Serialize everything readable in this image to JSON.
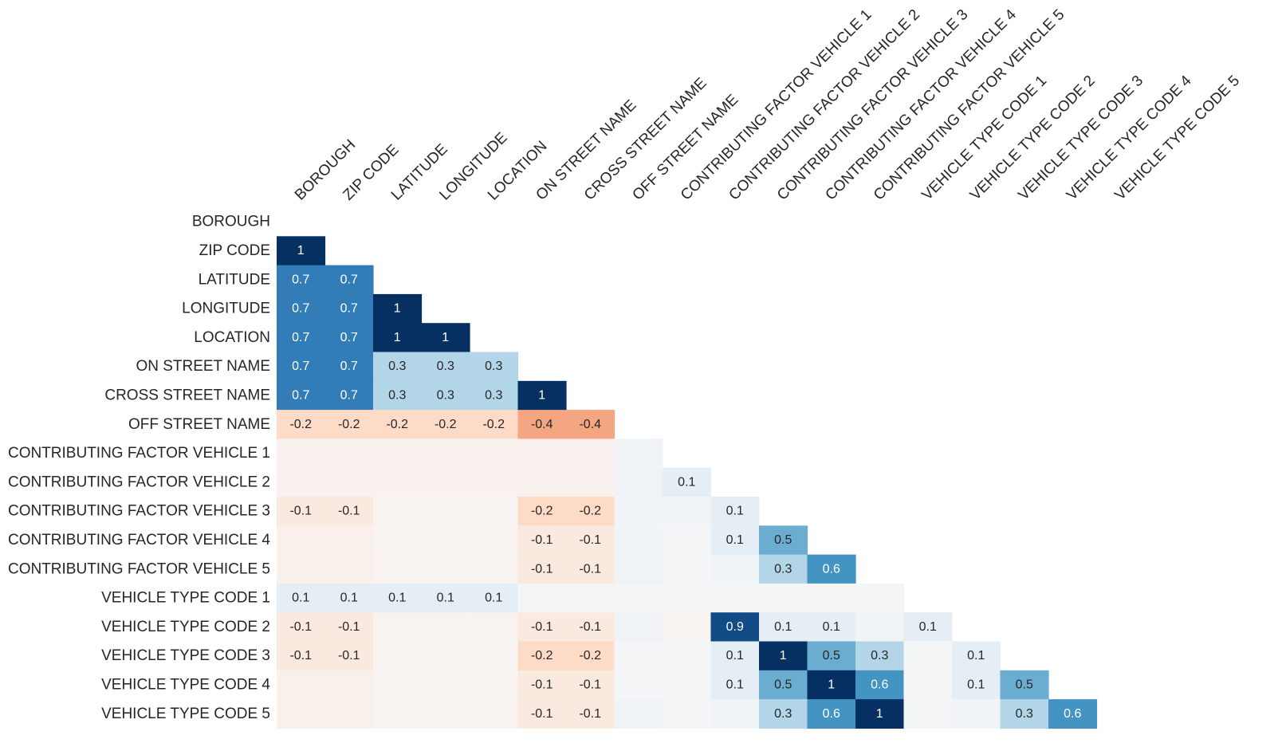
{
  "chart_data": {
    "type": "heatmap",
    "title": "",
    "xlabel": "",
    "ylabel": "",
    "color_scale": {
      "min": -1,
      "max": 1,
      "negative": "#67001f",
      "positive": "#053061",
      "center": "#f7f7f7"
    },
    "labels": [
      "BOROUGH",
      "ZIP CODE",
      "LATITUDE",
      "LONGITUDE",
      "LOCATION",
      "ON STREET NAME",
      "CROSS STREET NAME",
      "OFF STREET NAME",
      "CONTRIBUTING FACTOR VEHICLE 1",
      "CONTRIBUTING FACTOR VEHICLE 2",
      "CONTRIBUTING FACTOR VEHICLE 3",
      "CONTRIBUTING FACTOR VEHICLE 4",
      "CONTRIBUTING FACTOR VEHICLE 5",
      "VEHICLE TYPE CODE 1",
      "VEHICLE TYPE CODE 2",
      "VEHICLE TYPE CODE 3",
      "VEHICLE TYPE CODE 4",
      "VEHICLE TYPE CODE 5"
    ],
    "values": [
      [],
      [
        1
      ],
      [
        0.7,
        0.7
      ],
      [
        0.7,
        0.7,
        1
      ],
      [
        0.7,
        0.7,
        1,
        1
      ],
      [
        0.7,
        0.7,
        0.3,
        0.3,
        0.3
      ],
      [
        0.7,
        0.7,
        0.3,
        0.3,
        0.3,
        1
      ],
      [
        -0.2,
        -0.2,
        -0.2,
        -0.2,
        -0.2,
        -0.4,
        -0.4
      ],
      [
        -0.04,
        -0.04,
        -0.04,
        -0.04,
        -0.04,
        -0.04,
        -0.04,
        0.03
      ],
      [
        -0.04,
        -0.04,
        -0.04,
        -0.04,
        -0.04,
        -0.04,
        -0.04,
        0.04,
        0.1
      ],
      [
        -0.1,
        -0.1,
        -0.03,
        -0.03,
        -0.03,
        -0.2,
        -0.2,
        0.03,
        0.03,
        0.1
      ],
      [
        -0.05,
        -0.05,
        -0.02,
        -0.02,
        -0.02,
        -0.1,
        -0.1,
        0.03,
        0.02,
        0.1,
        0.5
      ],
      [
        -0.05,
        -0.05,
        -0.03,
        -0.03,
        -0.03,
        -0.1,
        -0.1,
        0.04,
        0.02,
        0.03,
        0.3,
        0.6
      ],
      [
        0.1,
        0.1,
        0.1,
        0.1,
        0.1,
        0.02,
        0.02,
        0.02,
        0.02,
        0.02,
        0.02,
        0.02,
        0.02
      ],
      [
        -0.1,
        -0.1,
        -0.03,
        -0.03,
        -0.03,
        -0.1,
        -0.1,
        0.04,
        -0.02,
        0.9,
        0.1,
        0.1,
        0.03,
        0.1
      ],
      [
        -0.1,
        -0.1,
        -0.02,
        -0.02,
        -0.02,
        -0.2,
        -0.2,
        0.02,
        0.02,
        0.1,
        1,
        0.5,
        0.3,
        0.02,
        0.1
      ],
      [
        -0.05,
        -0.05,
        -0.02,
        -0.02,
        -0.02,
        -0.1,
        -0.1,
        0.02,
        0.02,
        0.1,
        0.5,
        1,
        0.6,
        0.02,
        0.1,
        0.5
      ],
      [
        -0.05,
        -0.05,
        -0.02,
        -0.02,
        -0.02,
        -0.1,
        -0.1,
        0.04,
        0.02,
        0.03,
        0.3,
        0.6,
        1,
        0.02,
        0.03,
        0.3,
        0.6
      ]
    ],
    "annotations": [
      [],
      [
        "1"
      ],
      [
        "0.7",
        "0.7"
      ],
      [
        "0.7",
        "0.7",
        "1"
      ],
      [
        "0.7",
        "0.7",
        "1",
        "1"
      ],
      [
        "0.7",
        "0.7",
        "0.3",
        "0.3",
        "0.3"
      ],
      [
        "0.7",
        "0.7",
        "0.3",
        "0.3",
        "0.3",
        "1"
      ],
      [
        "-0.2",
        "-0.2",
        "-0.2",
        "-0.2",
        "-0.2",
        "-0.4",
        "-0.4"
      ],
      [
        "",
        "",
        "",
        "",
        "",
        "",
        "",
        ""
      ],
      [
        "",
        "",
        "",
        "",
        "",
        "",
        "",
        "",
        "0.1"
      ],
      [
        "-0.1",
        "-0.1",
        "",
        "",
        "",
        "-0.2",
        "-0.2",
        "",
        "",
        "0.1"
      ],
      [
        "",
        "",
        "",
        "",
        "",
        "-0.1",
        "-0.1",
        "",
        "",
        "0.1",
        "0.5"
      ],
      [
        "",
        "",
        "",
        "",
        "",
        "-0.1",
        "-0.1",
        "",
        "",
        "",
        "0.3",
        "0.6"
      ],
      [
        "0.1",
        "0.1",
        "0.1",
        "0.1",
        "0.1",
        "",
        "",
        "",
        "",
        "",
        "",
        "",
        ""
      ],
      [
        "-0.1",
        "-0.1",
        "",
        "",
        "",
        "-0.1",
        "-0.1",
        "",
        "",
        "0.9",
        "0.1",
        "0.1",
        "",
        "0.1"
      ],
      [
        "-0.1",
        "-0.1",
        "",
        "",
        "",
        "-0.2",
        "-0.2",
        "",
        "",
        "0.1",
        "1",
        "0.5",
        "0.3",
        "",
        "0.1"
      ],
      [
        "",
        "",
        "",
        "",
        "",
        "-0.1",
        "-0.1",
        "",
        "",
        "0.1",
        "0.5",
        "1",
        "0.6",
        "",
        "0.1",
        "0.5"
      ],
      [
        "",
        "",
        "",
        "",
        "",
        "-0.1",
        "-0.1",
        "",
        "",
        "",
        "0.3",
        "0.6",
        "1",
        "",
        "",
        "0.3",
        "0.6"
      ]
    ]
  }
}
